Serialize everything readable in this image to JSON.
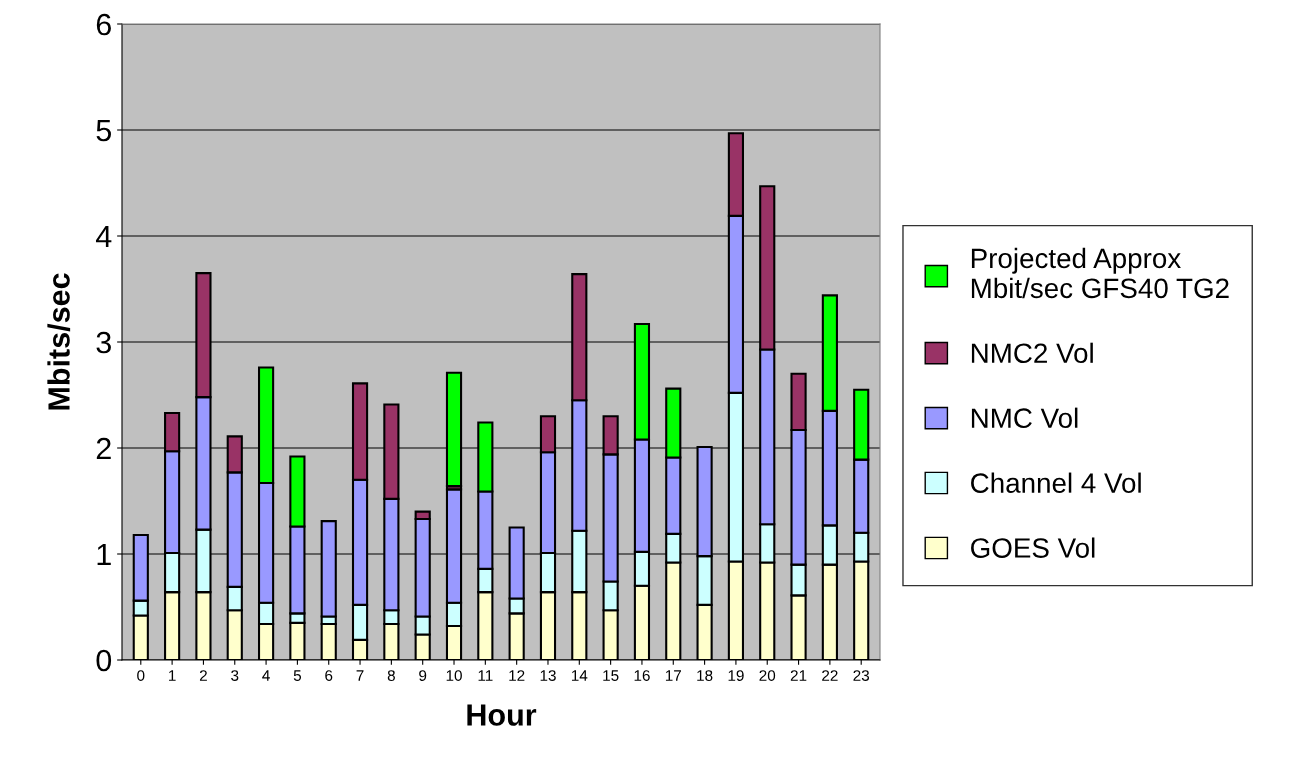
{
  "chart_data": {
    "type": "bar",
    "stacked": true,
    "xlabel": "Hour",
    "ylabel": "Mbits/sec",
    "categories": [
      "0",
      "1",
      "2",
      "3",
      "4",
      "5",
      "6",
      "7",
      "8",
      "9",
      "10",
      "11",
      "12",
      "13",
      "14",
      "15",
      "16",
      "17",
      "18",
      "19",
      "20",
      "21",
      "22",
      "23"
    ],
    "series": [
      {
        "name": "GOES Vol",
        "color": "#ffffcc",
        "values": [
          0.42,
          0.64,
          0.64,
          0.47,
          0.34,
          0.35,
          0.34,
          0.19,
          0.34,
          0.24,
          0.32,
          0.64,
          0.44,
          0.64,
          0.64,
          0.47,
          0.7,
          0.92,
          0.52,
          0.93,
          0.92,
          0.61,
          0.9,
          0.93
        ]
      },
      {
        "name": "Channel 4 Vol",
        "color": "#ccffff",
        "values": [
          0.14,
          0.37,
          0.59,
          0.22,
          0.2,
          0.09,
          0.07,
          0.33,
          0.13,
          0.17,
          0.22,
          0.22,
          0.14,
          0.37,
          0.58,
          0.27,
          0.32,
          0.27,
          0.46,
          1.59,
          0.36,
          0.29,
          0.37,
          0.27
        ]
      },
      {
        "name": "NMC Vol",
        "color": "#9999ff",
        "values": [
          0.62,
          0.96,
          1.25,
          1.08,
          1.13,
          0.82,
          0.9,
          1.18,
          1.05,
          0.92,
          1.07,
          0.73,
          0.67,
          0.95,
          1.23,
          1.2,
          1.06,
          0.72,
          1.03,
          1.67,
          1.65,
          1.27,
          1.08,
          0.69
        ]
      },
      {
        "name": "NMC2 Vol",
        "color": "#993366",
        "values": [
          null,
          0.36,
          1.17,
          0.34,
          null,
          null,
          null,
          0.91,
          0.89,
          0.07,
          0.03,
          null,
          null,
          0.34,
          1.19,
          0.36,
          null,
          null,
          null,
          0.78,
          1.54,
          0.53,
          null,
          null
        ]
      },
      {
        "name": "Projected Approx\nMbit/sec GFS40 TG2",
        "color": "#00ff00",
        "values": [
          null,
          null,
          null,
          null,
          1.09,
          0.66,
          null,
          null,
          null,
          null,
          1.07,
          0.65,
          null,
          null,
          null,
          null,
          1.09,
          0.65,
          null,
          null,
          null,
          null,
          1.09,
          0.66
        ]
      }
    ],
    "ylim": [
      0,
      6
    ],
    "yticks": [
      0,
      1,
      2,
      3,
      4,
      5,
      6
    ],
    "grid": "y",
    "legend": "right"
  }
}
